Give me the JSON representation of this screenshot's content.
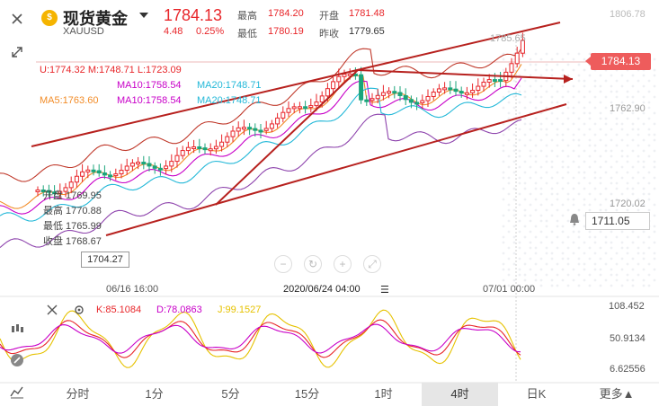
{
  "header": {
    "coin_icon": "gold-coin-icon",
    "title": "现货黄金",
    "symbol": "XAUUSD",
    "price": "1784.13",
    "change": "4.48",
    "change_pct": "0.25%",
    "high_label": "最高",
    "high": "1784.20",
    "open_label": "开盘",
    "open": "1781.48",
    "low_label": "最低",
    "low": "1780.19",
    "prev_label": "昨收",
    "prev": "1779.65"
  },
  "toolbar": {
    "close_icon": "close-icon",
    "expand_icon": "expand-icon"
  },
  "indicators": {
    "boll": "U:1774.32  M:1748.71  L:1723.09",
    "ma_row1_ma10": "MA10:1758.54",
    "ma_row1_ma20": "MA20:1748.71",
    "ma_row2_ma5": "MA5:1763.60",
    "ma_row2_ma10": "MA10:1758.54",
    "ma_row2_ma20": "MA20:1748.71"
  },
  "price_axis": {
    "top": "1806.78",
    "high_marker": "1785.65",
    "mid": "1762.90",
    "low": "1720.02"
  },
  "current_price_tag": "1784.13",
  "alert_price": "1711.05",
  "low_marker": "1704.27",
  "ohlc_panel": {
    "open": "开盘 1769.95",
    "high": "最高 1770.88",
    "low": "最低 1765.99",
    "close": "收盘 1768.67"
  },
  "x_axis": [
    "06/16 16:00",
    "2020/06/24 04:00",
    "07/01 00:00"
  ],
  "crosshair_menu_icon": "menu-icon",
  "kdj": {
    "k": "K:85.1084",
    "d": "D:78.0863",
    "j": "J:99.1527",
    "axis_top": "108.452",
    "axis_mid": "50.9134",
    "axis_low": "6.62556"
  },
  "tabs": [
    "分时",
    "1分",
    "5分",
    "15分",
    "1时",
    "4时",
    "日K",
    "更多▲"
  ],
  "active_tab": "4时",
  "colors": {
    "up": "#e8262a",
    "down": "#1ba57b",
    "channel": "#b7211e",
    "ma5": "#f28c28",
    "ma10": "#c800c8",
    "ma20": "#23b8d8",
    "bollU": "#c0392b",
    "bollL": "#8e44ad"
  }
}
